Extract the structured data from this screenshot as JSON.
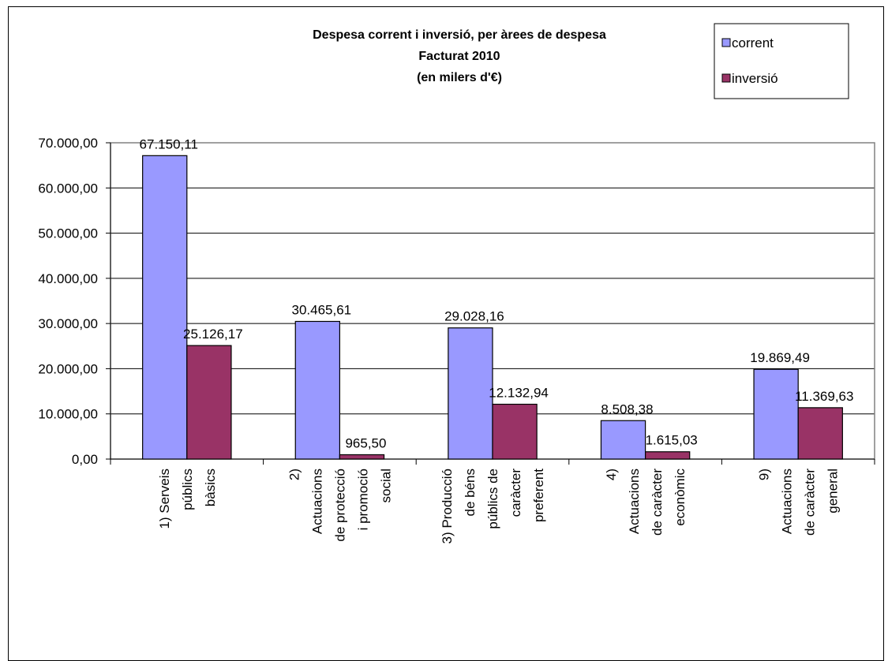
{
  "chart_data": {
    "type": "bar",
    "title_lines": [
      "Despesa corrent i inversió, per àrees de despesa",
      "Facturat 2010",
      "(en milers d'€)"
    ],
    "categories": [
      [
        "1) Serveis",
        "públics",
        "bàsics"
      ],
      [
        "2)",
        "Actuacions",
        "de protecció",
        "i promoció",
        "social"
      ],
      [
        "3) Producció",
        "de béns",
        "públics de",
        "caràcter",
        "preferent"
      ],
      [
        "4)",
        "Actuacions",
        "de caràcter",
        "econòmic"
      ],
      [
        "9)",
        "Actuacions",
        "de caràcter",
        "general"
      ]
    ],
    "series": [
      {
        "name": "corrent",
        "color": "#9999ff",
        "values": [
          67150.11,
          30465.61,
          29028.16,
          8508.38,
          19869.49
        ],
        "labels": [
          "67.150,11",
          "30.465,61",
          "29.028,16",
          "8.508,38",
          "19.869,49"
        ]
      },
      {
        "name": "inversió",
        "color": "#993366",
        "values": [
          25126.17,
          965.5,
          12132.94,
          1615.03,
          11369.63
        ],
        "labels": [
          "25.126,17",
          "965,50",
          "12.132,94",
          "1.615,03",
          "11.369,63"
        ]
      }
    ],
    "ylim": [
      0,
      70000
    ],
    "yticks": [
      0,
      10000,
      20000,
      30000,
      40000,
      50000,
      60000,
      70000
    ],
    "ytick_labels": [
      "0,00",
      "10.000,00",
      "20.000,00",
      "30.000,00",
      "40.000,00",
      "50.000,00",
      "60.000,00",
      "70.000,00"
    ],
    "grid": true,
    "legend": "top-right",
    "xlabel": "",
    "ylabel": ""
  }
}
